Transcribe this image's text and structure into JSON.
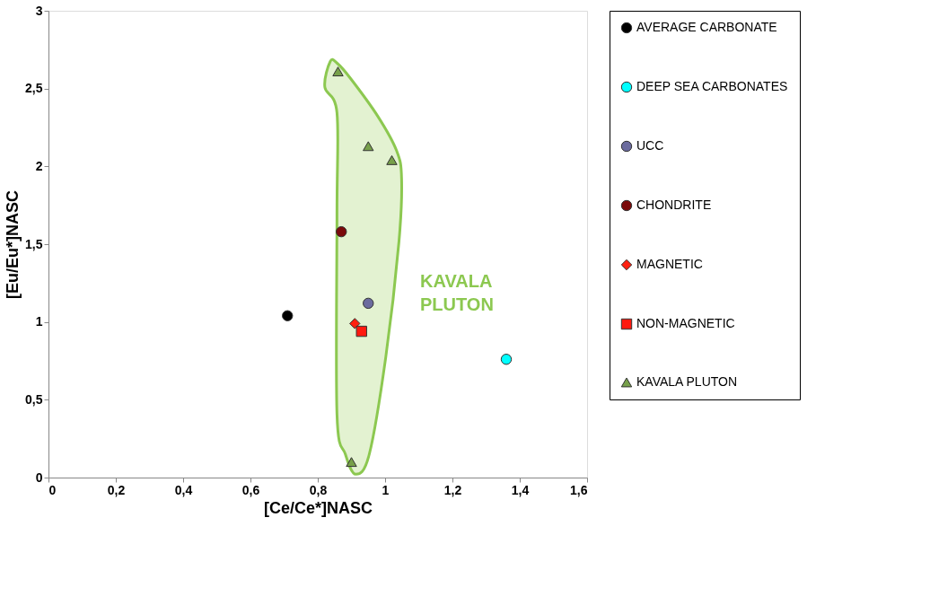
{
  "chart_data": {
    "type": "scatter",
    "xlabel": "[Ce/Ce*]NASC",
    "ylabel": "[Eu/Eu*]NASC",
    "xlim": [
      0,
      1.6
    ],
    "ylim": [
      0,
      3
    ],
    "xticks": [
      0,
      {
        "value": 0.2,
        "label": "0,2"
      },
      {
        "value": 0.4,
        "label": "0,4"
      },
      {
        "value": 0.6,
        "label": "0,6"
      },
      {
        "value": 0.8,
        "label": "0,8"
      },
      1,
      {
        "value": 1.2,
        "label": "1,2"
      },
      {
        "value": 1.4,
        "label": "1,4"
      },
      {
        "value": 1.6,
        "label": "1,6"
      }
    ],
    "yticks": [
      0,
      {
        "value": 0.5,
        "label": "0,5"
      },
      1,
      {
        "value": 1.5,
        "label": "1,5"
      },
      2,
      {
        "value": 2.5,
        "label": "2,5"
      },
      3
    ],
    "grid": false,
    "legend": "right",
    "annotations": [
      "KAVALA PLUTON"
    ],
    "series": [
      {
        "name": "AVERAGE CARBONATE",
        "color": "#000000",
        "marker": "circle",
        "x": [
          0.71
        ],
        "values": [
          1.04
        ]
      },
      {
        "name": "DEEP SEA CARBONATES",
        "color": "#00ffff",
        "marker": "circle",
        "x": [
          1.36
        ],
        "values": [
          0.76
        ]
      },
      {
        "name": "UCC",
        "color": "#6b6b9e",
        "marker": "circle",
        "x": [
          0.95
        ],
        "values": [
          1.12
        ]
      },
      {
        "name": "CHONDRITE",
        "color": "#7a0a0a",
        "marker": "circle",
        "x": [
          0.87
        ],
        "values": [
          1.58
        ]
      },
      {
        "name": "MAGNETIC",
        "color": "#ff2010",
        "marker": "diamond",
        "x": [
          0.91
        ],
        "values": [
          0.99
        ]
      },
      {
        "name": "NON-MAGNETIC",
        "color": "#ff1a10",
        "marker": "square",
        "x": [
          0.93
        ],
        "values": [
          0.94
        ]
      },
      {
        "name": "KAVALA PLUTON",
        "color": "#77a04a",
        "marker": "triangle",
        "x": [
          0.86,
          0.95,
          1.02,
          0.9
        ],
        "values": [
          2.61,
          2.13,
          2.04,
          0.1
        ]
      }
    ]
  }
}
